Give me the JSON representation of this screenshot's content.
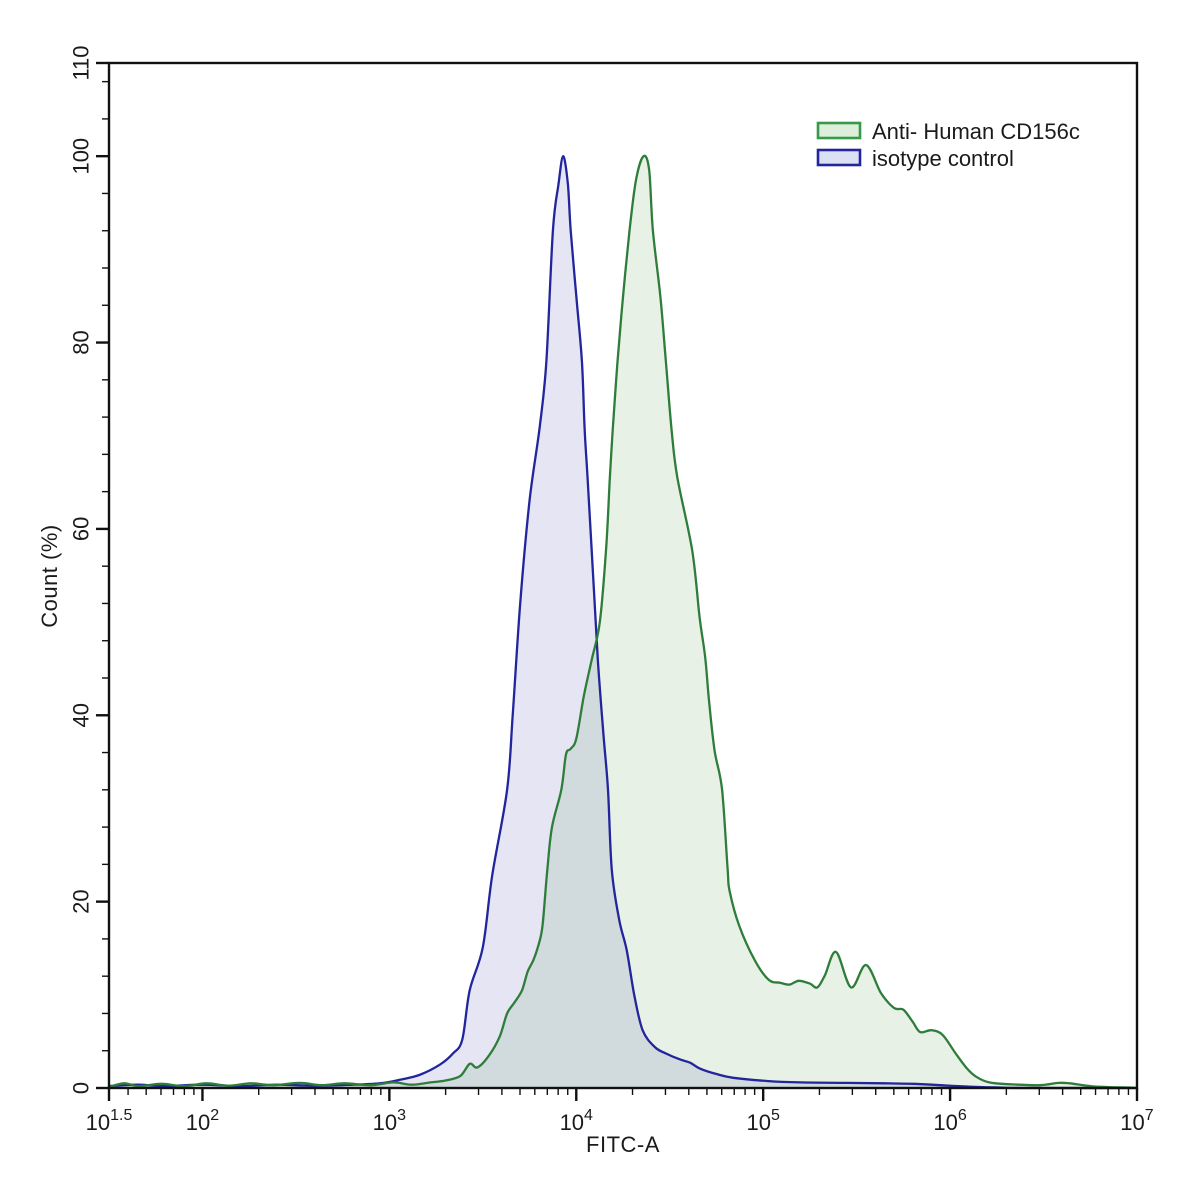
{
  "chart_data": {
    "type": "area",
    "subtype": "flow-cytometry-overlay-histogram",
    "title": "",
    "xlabel": "FITC-A",
    "ylabel": "Count  (%)",
    "x_scale": "log10",
    "x_log_range": [
      1.5,
      7
    ],
    "ylim": [
      0,
      110
    ],
    "grid": false,
    "x_tick_base": "10",
    "x_tick_exponents": [
      "1.5",
      "2",
      "3",
      "4",
      "5",
      "6",
      "7"
    ],
    "x_tick_logs": [
      1.5,
      2,
      3,
      4,
      5,
      6,
      7
    ],
    "y_tick_labels": [
      "0",
      "20",
      "40",
      "60",
      "80",
      "100",
      "110"
    ],
    "y_tick_values": [
      0,
      20,
      40,
      60,
      80,
      100,
      110
    ],
    "y_minor_step": 4,
    "legend": {
      "position": "top-right-inside"
    },
    "series": [
      {
        "name": "Anti- Human CD156c",
        "stroke": "#2e7d3a",
        "fill": "rgba(76,145,65,0.13)",
        "legend_fill": "#ddeeda",
        "legend_stroke": "#379a46",
        "peak_log10": 4.36,
        "peak_percent": 100,
        "points_log10_percent": [
          [
            1.5,
            0.1
          ],
          [
            1.58,
            0.5
          ],
          [
            1.66,
            0.2
          ],
          [
            1.78,
            0.45
          ],
          [
            1.9,
            0.2
          ],
          [
            2.02,
            0.5
          ],
          [
            2.14,
            0.25
          ],
          [
            2.26,
            0.5
          ],
          [
            2.38,
            0.3
          ],
          [
            2.52,
            0.55
          ],
          [
            2.64,
            0.3
          ],
          [
            2.76,
            0.5
          ],
          [
            2.9,
            0.3
          ],
          [
            3.02,
            0.6
          ],
          [
            3.12,
            0.35
          ],
          [
            3.22,
            0.6
          ],
          [
            3.3,
            0.8
          ],
          [
            3.38,
            1.3
          ],
          [
            3.43,
            2.6
          ],
          [
            3.47,
            2.2
          ],
          [
            3.53,
            3.4
          ],
          [
            3.59,
            5.5
          ],
          [
            3.63,
            8.0
          ],
          [
            3.67,
            9.2
          ],
          [
            3.71,
            10.5
          ],
          [
            3.74,
            12.5
          ],
          [
            3.77,
            13.7
          ],
          [
            3.8,
            15.5
          ],
          [
            3.82,
            17.5
          ],
          [
            3.845,
            23.4
          ],
          [
            3.87,
            28.0
          ],
          [
            3.92,
            32.0
          ],
          [
            3.945,
            35.8
          ],
          [
            3.97,
            36.4
          ],
          [
            4.0,
            37.5
          ],
          [
            4.04,
            42.0
          ],
          [
            4.083,
            46.0
          ],
          [
            4.126,
            50.0
          ],
          [
            4.16,
            58.0
          ],
          [
            4.18,
            65.6
          ],
          [
            4.195,
            70.6
          ],
          [
            4.22,
            77.8
          ],
          [
            4.25,
            84.9
          ],
          [
            4.285,
            92.0
          ],
          [
            4.32,
            97.5
          ],
          [
            4.36,
            100.0
          ],
          [
            4.39,
            98.5
          ],
          [
            4.41,
            92.0
          ],
          [
            4.45,
            84.9
          ],
          [
            4.48,
            77.8
          ],
          [
            4.51,
            70.6
          ],
          [
            4.54,
            65.6
          ],
          [
            4.62,
            57.7
          ],
          [
            4.66,
            50.5
          ],
          [
            4.69,
            46.2
          ],
          [
            4.71,
            41.6
          ],
          [
            4.74,
            36.2
          ],
          [
            4.78,
            32.0
          ],
          [
            4.81,
            23.4
          ],
          [
            4.82,
            21.2
          ],
          [
            4.87,
            17.5
          ],
          [
            4.955,
            13.7
          ],
          [
            5.03,
            11.6
          ],
          [
            5.09,
            11.3
          ],
          [
            5.14,
            11.1
          ],
          [
            5.19,
            11.5
          ],
          [
            5.25,
            11.2
          ],
          [
            5.29,
            10.8
          ],
          [
            5.33,
            12.1
          ],
          [
            5.39,
            14.6
          ],
          [
            5.47,
            10.8
          ],
          [
            5.55,
            13.2
          ],
          [
            5.63,
            10.2
          ],
          [
            5.7,
            8.6
          ],
          [
            5.75,
            8.4
          ],
          [
            5.8,
            7.1
          ],
          [
            5.84,
            6.0
          ],
          [
            5.9,
            6.2
          ],
          [
            5.96,
            5.7
          ],
          [
            6.03,
            3.7
          ],
          [
            6.09,
            2.1
          ],
          [
            6.14,
            1.2
          ],
          [
            6.21,
            0.6
          ],
          [
            6.32,
            0.4
          ],
          [
            6.48,
            0.3
          ],
          [
            6.58,
            0.55
          ],
          [
            6.64,
            0.5
          ],
          [
            6.75,
            0.2
          ],
          [
            6.85,
            0.1
          ],
          [
            6.96,
            0.05
          ],
          [
            7.0,
            0.0
          ]
        ]
      },
      {
        "name": "isotype control",
        "stroke": "#22259b",
        "fill": "rgba(70,70,180,0.14)",
        "legend_fill": "#dbe0f5",
        "legend_stroke": "#22259b",
        "peak_log10": 3.93,
        "peak_percent": 100,
        "points_log10_percent": [
          [
            1.5,
            0.2
          ],
          [
            1.65,
            0.35
          ],
          [
            1.8,
            0.2
          ],
          [
            2.0,
            0.35
          ],
          [
            2.2,
            0.2
          ],
          [
            2.4,
            0.35
          ],
          [
            2.6,
            0.25
          ],
          [
            2.8,
            0.35
          ],
          [
            2.95,
            0.5
          ],
          [
            3.06,
            0.9
          ],
          [
            3.16,
            1.4
          ],
          [
            3.27,
            2.5
          ],
          [
            3.34,
            3.7
          ],
          [
            3.39,
            5.2
          ],
          [
            3.43,
            10.5
          ],
          [
            3.5,
            15.1
          ],
          [
            3.55,
            22.8
          ],
          [
            3.63,
            32.0
          ],
          [
            3.66,
            40.0
          ],
          [
            3.7,
            52.0
          ],
          [
            3.75,
            63.0
          ],
          [
            3.805,
            71.0
          ],
          [
            3.84,
            78.0
          ],
          [
            3.875,
            92.0
          ],
          [
            3.905,
            97.0
          ],
          [
            3.93,
            100.0
          ],
          [
            3.955,
            97.0
          ],
          [
            3.97,
            92.0
          ],
          [
            4.0,
            85.0
          ],
          [
            4.03,
            78.0
          ],
          [
            4.045,
            70.6
          ],
          [
            4.06,
            65.6
          ],
          [
            4.09,
            55.0
          ],
          [
            4.115,
            46.0
          ],
          [
            4.145,
            38.0
          ],
          [
            4.17,
            32.0
          ],
          [
            4.19,
            23.4
          ],
          [
            4.23,
            18.0
          ],
          [
            4.27,
            14.8
          ],
          [
            4.31,
            10.0
          ],
          [
            4.355,
            6.2
          ],
          [
            4.42,
            4.4
          ],
          [
            4.48,
            3.7
          ],
          [
            4.55,
            3.1
          ],
          [
            4.61,
            2.7
          ],
          [
            4.66,
            2.1
          ],
          [
            4.75,
            1.5
          ],
          [
            4.84,
            1.1
          ],
          [
            5.02,
            0.75
          ],
          [
            5.2,
            0.6
          ],
          [
            5.45,
            0.55
          ],
          [
            5.65,
            0.5
          ],
          [
            5.8,
            0.45
          ],
          [
            5.95,
            0.3
          ],
          [
            6.1,
            0.15
          ],
          [
            6.27,
            0.05
          ],
          [
            6.4,
            0.0
          ],
          [
            7.0,
            0.0
          ]
        ]
      }
    ]
  }
}
